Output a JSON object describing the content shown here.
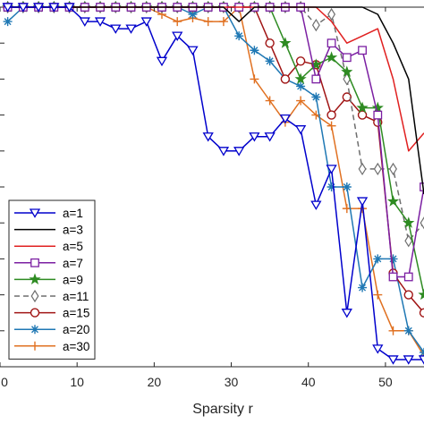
{
  "chart_data": {
    "type": "line",
    "xlabel": "Sparsity r",
    "ylabel": "",
    "xlim": [
      0,
      55
    ],
    "ylim": [
      0,
      1
    ],
    "xticks": [
      0,
      10,
      20,
      30,
      40,
      50
    ],
    "xtick_labels": [
      "0",
      "10",
      "20",
      "30",
      "40",
      "50"
    ],
    "grid": false,
    "legend_position": "bottom-left",
    "x": [
      1,
      3,
      5,
      7,
      9,
      11,
      13,
      15,
      17,
      19,
      21,
      23,
      25,
      27,
      29,
      31,
      33,
      35,
      37,
      39,
      41,
      43,
      45,
      47,
      49,
      51,
      53,
      55
    ],
    "series": [
      {
        "name": "a=1",
        "color": "#0000cc",
        "marker": "triangle-down",
        "values": [
          1,
          1,
          1,
          1,
          1,
          0.96,
          0.96,
          0.94,
          0.94,
          0.96,
          0.85,
          0.92,
          0.88,
          0.64,
          0.6,
          0.6,
          0.64,
          0.64,
          0.69,
          0.66,
          0.45,
          0.55,
          0.15,
          0.46,
          0.05,
          0.02,
          0.02,
          0.02
        ]
      },
      {
        "name": "a=3",
        "color": "#000000",
        "marker": "none",
        "values": [
          1,
          1,
          1,
          1,
          1,
          1,
          1,
          1,
          1,
          1,
          1,
          1,
          1,
          1,
          1,
          0.96,
          1,
          1,
          1,
          1,
          1,
          1,
          1,
          1,
          0.98,
          0.9,
          0.8,
          0.48
        ]
      },
      {
        "name": "a=5",
        "color": "#e02020",
        "marker": "none",
        "values": [
          1,
          1,
          1,
          1,
          1,
          1,
          1,
          1,
          1,
          1,
          1,
          1,
          1,
          1,
          1,
          1,
          1,
          1,
          1,
          1,
          1,
          0.96,
          0.9,
          0.92,
          0.94,
          0.8,
          0.6,
          0.65
        ]
      },
      {
        "name": "a=7",
        "color": "#7b1fa2",
        "marker": "square",
        "values": [
          1,
          1,
          1,
          1,
          1,
          1,
          1,
          1,
          1,
          1,
          1,
          1,
          1,
          1,
          1,
          1,
          1,
          1,
          1,
          1,
          0.8,
          0.9,
          0.86,
          0.88,
          0.7,
          0.25,
          0.25,
          0.5
        ]
      },
      {
        "name": "a=9",
        "color": "#2e8b22",
        "marker": "star",
        "values": [
          1,
          1,
          1,
          1,
          1,
          1,
          1,
          1,
          1,
          1,
          1,
          1,
          1,
          1,
          1,
          1,
          1,
          1,
          0.9,
          0.8,
          0.84,
          0.86,
          0.82,
          0.72,
          0.72,
          0.46,
          0.4,
          0.2
        ]
      },
      {
        "name": "a=11",
        "color": "#6e6e6e",
        "marker": "diamond",
        "dashed": true,
        "values": [
          1,
          1,
          1,
          1,
          1,
          1,
          1,
          1,
          1,
          1,
          1,
          1,
          1,
          1,
          1,
          1,
          1,
          1,
          1,
          1,
          0.95,
          0.98,
          0.8,
          0.55,
          0.55,
          0.55,
          0.35,
          0.4
        ]
      },
      {
        "name": "a=15",
        "color": "#a01414",
        "marker": "circle",
        "values": [
          1,
          1,
          1,
          1,
          1,
          1,
          1,
          1,
          1,
          1,
          1,
          1,
          1,
          1,
          1,
          1,
          1,
          0.9,
          0.8,
          0.85,
          0.84,
          0.7,
          0.75,
          0.7,
          0.68,
          0.26,
          0.2,
          0.15
        ]
      },
      {
        "name": "a=20",
        "color": "#1f78b4",
        "marker": "asterisk",
        "values": [
          0.96,
          1,
          1,
          1,
          1,
          1,
          1,
          1,
          1,
          1,
          1,
          1,
          0.98,
          1,
          1,
          0.92,
          0.88,
          0.85,
          0.8,
          0.78,
          0.75,
          0.5,
          0.5,
          0.22,
          0.3,
          0.3,
          0.1,
          0.04
        ]
      },
      {
        "name": "a=30",
        "color": "#e07020",
        "marker": "plus",
        "values": [
          1,
          1,
          1,
          1,
          1,
          1,
          1,
          1,
          1,
          1,
          0.98,
          0.96,
          0.97,
          0.96,
          0.96,
          1,
          0.8,
          0.74,
          0.68,
          0.74,
          0.7,
          0.67,
          0.44,
          0.44,
          0.2,
          0.1,
          0.1,
          0.03
        ]
      }
    ]
  }
}
